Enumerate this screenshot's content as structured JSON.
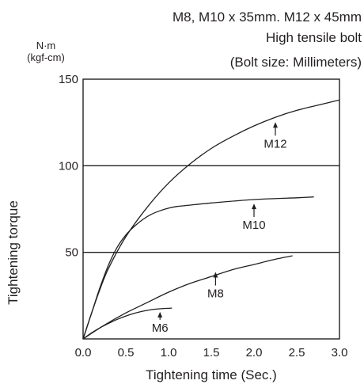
{
  "chart_data": {
    "type": "line",
    "title_lines": [
      "M8, M10 x 35mm. M12 x 45mm",
      "High tensile bolt",
      "(Bolt size: Millimeters)"
    ],
    "unit_lines": [
      "N·m",
      "(kgf-cm)"
    ],
    "xlabel": "Tightening time (Sec.)",
    "ylabel": "Tightening torque",
    "xlim": [
      0,
      3.0
    ],
    "ylim": [
      0,
      150
    ],
    "xticks": [
      "0.0",
      "0.5",
      "1.0",
      "1.5",
      "2.0",
      "2.5",
      "3.0"
    ],
    "yticks": [
      "50",
      "100",
      "150"
    ],
    "gridlines_y": [
      50,
      100
    ],
    "series": [
      {
        "name": "M12",
        "x": [
          0,
          0.1,
          0.2,
          0.3,
          0.5,
          0.75,
          1.0,
          1.25,
          1.5,
          1.75,
          2.0,
          2.25,
          2.5,
          2.75,
          3.0
        ],
        "y": [
          0,
          15,
          29,
          41,
          59,
          76,
          90,
          101,
          110,
          117,
          123,
          128,
          132,
          135,
          138
        ]
      },
      {
        "name": "M10",
        "x": [
          0,
          0.1,
          0.2,
          0.3,
          0.4,
          0.5,
          0.6,
          0.7,
          0.8,
          0.9,
          1.0,
          1.1,
          1.2,
          1.5,
          2.0,
          2.5,
          2.7
        ],
        "y": [
          0,
          15,
          30,
          43,
          53,
          60,
          65,
          69,
          72,
          74,
          75.5,
          76.5,
          77,
          78.5,
          80.5,
          81.5,
          82
        ]
      },
      {
        "name": "M8",
        "x": [
          0,
          0.25,
          0.5,
          0.75,
          1.0,
          1.25,
          1.5,
          1.75,
          2.0,
          2.25,
          2.45
        ],
        "y": [
          0,
          8,
          15,
          21,
          27,
          32,
          36,
          40,
          43,
          46,
          48
        ]
      },
      {
        "name": "M6",
        "x": [
          0,
          0.1,
          0.2,
          0.3,
          0.4,
          0.5,
          0.6,
          0.7,
          0.8,
          0.9,
          1.04
        ],
        "y": [
          0,
          3.5,
          6.5,
          9,
          11.3,
          13.2,
          14.8,
          16,
          16.9,
          17.4,
          17.8
        ]
      }
    ],
    "annotations": [
      {
        "text": "M12",
        "x": 2.25,
        "y": 127
      },
      {
        "text": "M10",
        "x": 2.0,
        "y": 80
      },
      {
        "text": "M8",
        "x": 1.55,
        "y": 40
      },
      {
        "text": "M6",
        "x": 0.9,
        "y": 17
      }
    ],
    "colors": {
      "line": "#231f20",
      "text": "#231f20"
    }
  }
}
